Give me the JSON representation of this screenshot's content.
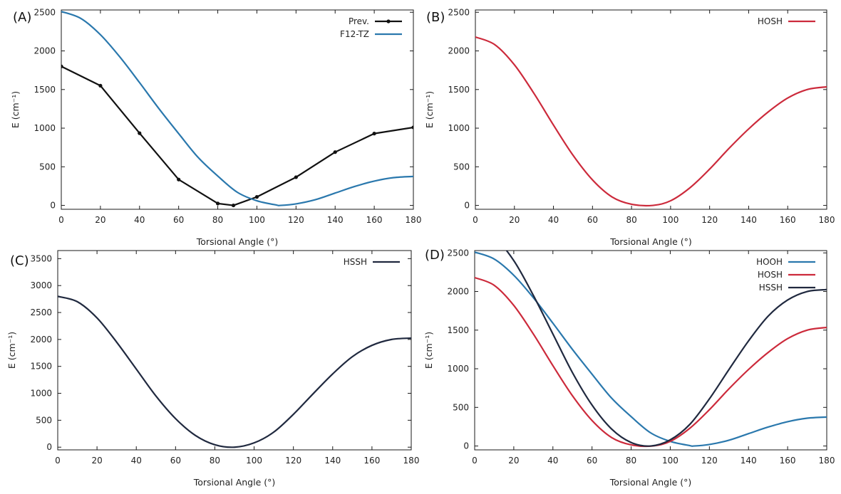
{
  "colors": {
    "prev": "#111111",
    "f12tz": "#2a78ad",
    "hooh": "#2a78ad",
    "hosh": "#cc2a3b",
    "hssh": "#20293f"
  },
  "chart_data": [
    {
      "panel": "(A)",
      "type": "line",
      "xlabel": "Torsional Angle (°)",
      "ylabel": "E (cm⁻¹)",
      "xlim": [
        0,
        180
      ],
      "ylim": [
        -50,
        2530
      ],
      "xticks": [
        0,
        20,
        40,
        60,
        80,
        100,
        120,
        140,
        160,
        180
      ],
      "yticks": [
        0,
        500,
        1000,
        1500,
        2000,
        2500
      ],
      "legend": "top-right",
      "grid": false,
      "series": [
        {
          "name": "Prev.",
          "color_key": "prev",
          "markers": true,
          "x": [
            0,
            20,
            40,
            60,
            80,
            88,
            100,
            120,
            140,
            160,
            180
          ],
          "y": [
            1800,
            1550,
            935,
            335,
            25,
            0,
            110,
            365,
            690,
            930,
            1010
          ]
        },
        {
          "name": "F12-TZ",
          "color_key": "f12tz",
          "markers": false,
          "x": [
            0,
            10,
            20,
            30,
            40,
            50,
            60,
            70,
            80,
            90,
            100,
            110,
            112,
            120,
            130,
            140,
            150,
            160,
            170,
            180
          ],
          "y": [
            2510,
            2420,
            2210,
            1920,
            1590,
            1250,
            930,
            620,
            380,
            170,
            60,
            5,
            0,
            20,
            75,
            160,
            245,
            315,
            360,
            375
          ]
        }
      ]
    },
    {
      "panel": "(B)",
      "type": "line",
      "xlabel": "Torsional Angle (°)",
      "ylabel": "E (cm⁻¹)",
      "xlim": [
        0,
        180
      ],
      "ylim": [
        -50,
        2530
      ],
      "xticks": [
        0,
        20,
        40,
        60,
        80,
        100,
        120,
        140,
        160,
        180
      ],
      "yticks": [
        0,
        500,
        1000,
        1500,
        2000,
        2500
      ],
      "legend": "top-right",
      "grid": false,
      "series": [
        {
          "name": "HOSH",
          "color_key": "hosh",
          "markers": false,
          "x": [
            0,
            10,
            20,
            30,
            40,
            50,
            60,
            70,
            80,
            91,
            100,
            110,
            120,
            130,
            140,
            150,
            160,
            170,
            180
          ],
          "y": [
            2180,
            2080,
            1820,
            1450,
            1040,
            650,
            330,
            110,
            15,
            0,
            60,
            230,
            470,
            740,
            990,
            1210,
            1390,
            1500,
            1535
          ]
        }
      ]
    },
    {
      "panel": "(C)",
      "type": "line",
      "xlabel": "Torsional Angle (°)",
      "ylabel": "E (cm⁻¹)",
      "xlim": [
        0,
        180
      ],
      "ylim": [
        -50,
        3650
      ],
      "xticks": [
        0,
        20,
        40,
        60,
        80,
        100,
        120,
        140,
        160,
        180
      ],
      "yticks": [
        0,
        500,
        1000,
        1500,
        2000,
        2500,
        3000,
        3500
      ],
      "legend": "top-right",
      "grid": false,
      "series": [
        {
          "name": "HSSH",
          "color_key": "hssh",
          "markers": false,
          "x": [
            0,
            10,
            20,
            30,
            40,
            50,
            60,
            70,
            80,
            90,
            100,
            110,
            120,
            130,
            140,
            150,
            160,
            170,
            180
          ],
          "y": [
            2800,
            2700,
            2400,
            1950,
            1450,
            950,
            530,
            220,
            45,
            0,
            80,
            280,
            610,
            990,
            1360,
            1680,
            1890,
            2000,
            2025
          ]
        }
      ]
    },
    {
      "panel": "(D)",
      "type": "line",
      "xlabel": "Torsional Angle (°)",
      "ylabel": "E (cm⁻¹)",
      "xlim": [
        0,
        180
      ],
      "ylim": [
        -50,
        2530
      ],
      "xticks": [
        0,
        20,
        40,
        60,
        80,
        100,
        120,
        140,
        160,
        180
      ],
      "yticks": [
        0,
        500,
        1000,
        1500,
        2000,
        2500
      ],
      "legend": "top-right",
      "grid": false,
      "series": [
        {
          "name": "HOOH",
          "color_key": "hooh",
          "markers": false,
          "x": [
            0,
            10,
            20,
            30,
            40,
            50,
            60,
            70,
            80,
            90,
            100,
            110,
            112,
            120,
            130,
            140,
            150,
            160,
            170,
            180
          ],
          "y": [
            2510,
            2420,
            2210,
            1920,
            1590,
            1250,
            930,
            620,
            380,
            170,
            60,
            5,
            0,
            20,
            75,
            160,
            245,
            315,
            360,
            375
          ]
        },
        {
          "name": "HOSH",
          "color_key": "hosh",
          "markers": false,
          "x": [
            0,
            10,
            20,
            30,
            40,
            50,
            60,
            70,
            80,
            91,
            100,
            110,
            120,
            130,
            140,
            150,
            160,
            170,
            180
          ],
          "y": [
            2180,
            2080,
            1820,
            1450,
            1040,
            650,
            330,
            110,
            15,
            0,
            60,
            230,
            470,
            740,
            990,
            1210,
            1390,
            1500,
            1535
          ]
        },
        {
          "name": "HSSH",
          "color_key": "hssh",
          "markers": false,
          "x": [
            0,
            10,
            20,
            30,
            40,
            50,
            60,
            70,
            80,
            90,
            100,
            110,
            120,
            130,
            140,
            150,
            160,
            170,
            180
          ],
          "y": [
            2800,
            2700,
            2400,
            1950,
            1450,
            950,
            530,
            220,
            45,
            0,
            80,
            280,
            610,
            990,
            1360,
            1680,
            1890,
            2000,
            2025
          ]
        }
      ]
    }
  ]
}
